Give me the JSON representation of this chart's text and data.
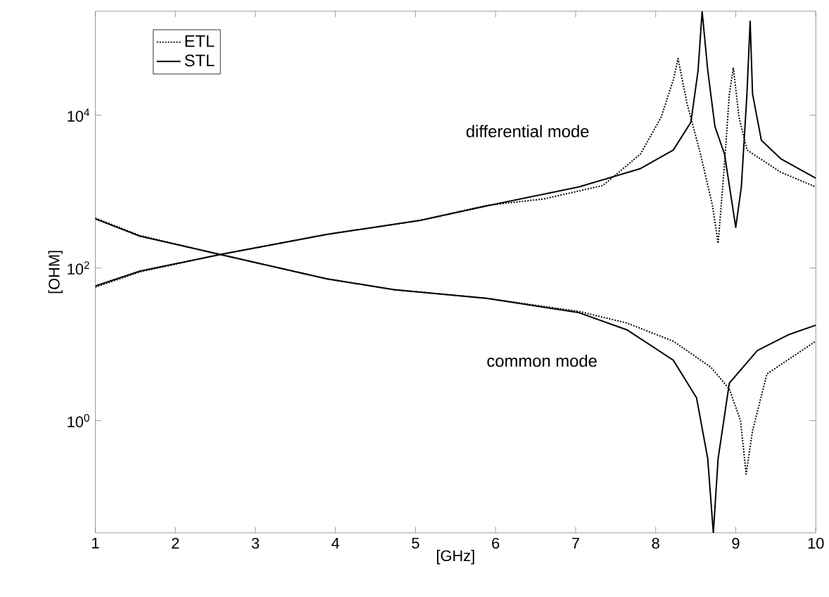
{
  "chart_data": {
    "type": "line",
    "xlabel": "[GHz]",
    "ylabel": "[OHM]",
    "log": "y",
    "legend": "top left",
    "grid": false,
    "xlim": [
      1,
      10
    ],
    "xticks": [
      1,
      2,
      3,
      4,
      5,
      6,
      7,
      8,
      9,
      10
    ],
    "ylim": [
      0.034,
      230000
    ],
    "yticks": [
      {
        "value": 1,
        "label": "10$^{0}$"
      },
      {
        "value": 100,
        "label": "10$^{2}$"
      },
      {
        "value": 10000,
        "label": "10$^{4}$"
      }
    ],
    "annotations": [
      "differential mode",
      "common mode"
    ],
    "series": [
      {
        "name": "ETL",
        "color": "#000000",
        "line_style": "dotted",
        "x": [
          1,
          1.56,
          2.56,
          3.89,
          5.06,
          5.89,
          6.6,
          7.34,
          7.81,
          8.07,
          8.22,
          8.28,
          8.39,
          8.56,
          8.71,
          8.78,
          8.86,
          8.92,
          8.97,
          9.04,
          9.14,
          9.56,
          10
        ],
        "values": [
          56,
          89,
          150,
          275,
          420,
          660,
          800,
          1200,
          3100,
          9500,
          29000,
          55000,
          14500,
          3100,
          650,
          210,
          2300,
          19000,
          42000,
          9500,
          3500,
          1800,
          1150
        ]
      },
      {
        "name": "STL",
        "color": "#000000",
        "line_style": "solid",
        "x": [
          1,
          1.56,
          2.56,
          3.89,
          5.06,
          5.89,
          7.04,
          7.81,
          8.22,
          8.44,
          8.53,
          8.58,
          8.65,
          8.74,
          8.86,
          9.0,
          9.07,
          9.14,
          9.18,
          9.21,
          9.32,
          9.56,
          10
        ],
        "values": [
          58,
          91,
          150,
          275,
          420,
          650,
          1150,
          2000,
          3500,
          8100,
          39000,
          230000,
          39000,
          7100,
          3100,
          340,
          1150,
          19000,
          170000,
          19000,
          4700,
          2700,
          1500
        ]
      },
      {
        "color": "#000000",
        "line_style": "dotted",
        "x": [
          1,
          1.56,
          2.56,
          3.89,
          4.73,
          5.89,
          7.04,
          7.64,
          8.22,
          8.69,
          8.92,
          9.06,
          9.13,
          9.21,
          9.39,
          10
        ],
        "values": [
          450,
          265,
          150,
          72,
          52,
          40,
          27,
          19,
          11,
          5.0,
          2.6,
          1.0,
          0.2,
          0.74,
          4.1,
          11
        ]
      },
      {
        "color": "#000000",
        "line_style": "solid",
        "x": [
          1,
          1.56,
          2.56,
          3.89,
          4.73,
          5.89,
          7.04,
          7.64,
          8.22,
          8.51,
          8.65,
          8.72,
          8.78,
          8.92,
          9.27,
          9.67,
          10
        ],
        "values": [
          440,
          260,
          150,
          72,
          52,
          40,
          26,
          15.5,
          6.2,
          2.0,
          0.32,
          0.034,
          0.32,
          3.1,
          8.3,
          13.5,
          17.8
        ]
      }
    ]
  }
}
